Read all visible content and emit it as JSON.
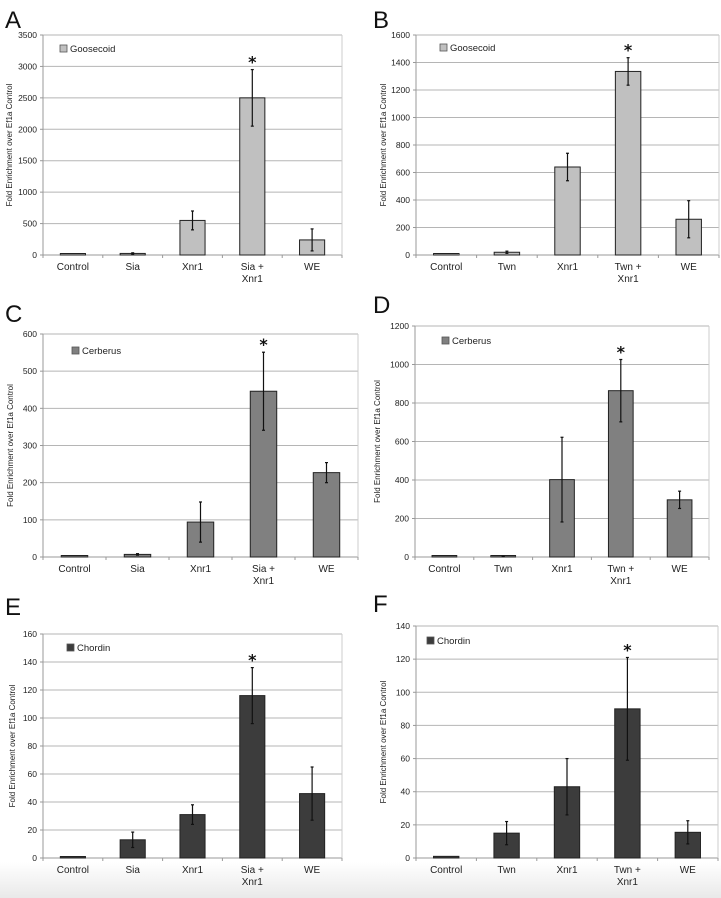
{
  "chart_data": [
    {
      "id": "A",
      "type": "bar",
      "panel_label": "A",
      "title": "",
      "xlabel": "",
      "ylabel": "Fold Enrichment over Ef1a Control",
      "legend": "Goosecoid",
      "legend_position": "top-left",
      "categories": [
        [
          "Control"
        ],
        [
          "Sia"
        ],
        [
          "Xnr1"
        ],
        [
          "Sia +",
          "Xnr1"
        ],
        [
          "WE"
        ]
      ],
      "values": [
        1,
        25,
        550,
        2500,
        240
      ],
      "errors": [
        0,
        10,
        150,
        450,
        175
      ],
      "significant": [
        false,
        false,
        false,
        true,
        false
      ],
      "ylim": [
        0,
        3500
      ],
      "yticks": [
        0,
        500,
        1000,
        1500,
        2000,
        2500,
        3000,
        3500
      ],
      "grid": true,
      "bar_color": "#c0c0c0"
    },
    {
      "id": "B",
      "type": "bar",
      "panel_label": "B",
      "title": "",
      "xlabel": "",
      "ylabel": "Fold Enrichment over Ef1a Control",
      "legend": "Goosecoid",
      "legend_position": "top-left",
      "categories": [
        [
          "Control"
        ],
        [
          "Twn"
        ],
        [
          "Xnr1"
        ],
        [
          "Twn +",
          "Xnr1"
        ],
        [
          "WE"
        ]
      ],
      "values": [
        1,
        20,
        640,
        1335,
        260
      ],
      "errors": [
        0,
        8,
        100,
        100,
        135
      ],
      "significant": [
        false,
        false,
        false,
        true,
        false
      ],
      "ylim": [
        0,
        1600
      ],
      "yticks": [
        0,
        200,
        400,
        600,
        800,
        1000,
        1200,
        1400,
        1600
      ],
      "grid": true,
      "bar_color": "#c0c0c0"
    },
    {
      "id": "C",
      "type": "bar",
      "panel_label": "C",
      "title": "",
      "xlabel": "",
      "ylabel": "Fold Enrichment over Ef1a Control",
      "legend": "Cerberus",
      "legend_position": "top-left",
      "categories": [
        [
          "Control"
        ],
        [
          "Sia"
        ],
        [
          "Xnr1"
        ],
        [
          "Sia +",
          "Xnr1"
        ],
        [
          "WE"
        ]
      ],
      "values": [
        1,
        7,
        94,
        446,
        227
      ],
      "errors": [
        0,
        2,
        54,
        105,
        27
      ],
      "significant": [
        false,
        false,
        false,
        true,
        false
      ],
      "ylim": [
        0,
        600
      ],
      "yticks": [
        0,
        100,
        200,
        300,
        400,
        500,
        600
      ],
      "grid": true,
      "bar_color": "#808080"
    },
    {
      "id": "D",
      "type": "bar",
      "panel_label": "D",
      "title": "",
      "xlabel": "",
      "ylabel": "Fold Enrichment over Ef1a Control",
      "legend": "Cerberus",
      "legend_position": "top-left",
      "categories": [
        [
          "Control"
        ],
        [
          "Twn"
        ],
        [
          "Xnr1"
        ],
        [
          "Twn +",
          "Xnr1"
        ],
        [
          "WE"
        ]
      ],
      "values": [
        1,
        3,
        402,
        864,
        297
      ],
      "errors": [
        0,
        1,
        220,
        162,
        45
      ],
      "significant": [
        false,
        false,
        false,
        true,
        false
      ],
      "ylim": [
        0,
        1200
      ],
      "yticks": [
        0,
        200,
        400,
        600,
        800,
        1000,
        1200
      ],
      "grid": true,
      "bar_color": "#808080"
    },
    {
      "id": "E",
      "type": "bar",
      "panel_label": "E",
      "title": "",
      "xlabel": "",
      "ylabel": "Fold Enrichment over Ef1a Control",
      "legend": "Chordin",
      "legend_position": "top-left",
      "categories": [
        [
          "Control"
        ],
        [
          "Sia"
        ],
        [
          "Xnr1"
        ],
        [
          "Sia +",
          "Xnr1"
        ],
        [
          "WE"
        ]
      ],
      "values": [
        1,
        13,
        31,
        116,
        46
      ],
      "errors": [
        0,
        5.5,
        7,
        20,
        19
      ],
      "significant": [
        false,
        false,
        false,
        true,
        false
      ],
      "ylim": [
        0,
        160
      ],
      "yticks": [
        0,
        20,
        40,
        60,
        80,
        100,
        120,
        140,
        160
      ],
      "grid": true,
      "bar_color": "#3c3c3c"
    },
    {
      "id": "F",
      "type": "bar",
      "panel_label": "F",
      "title": "",
      "xlabel": "",
      "ylabel": "Fold Enrichment over Ef1a Control",
      "legend": "Chordin",
      "legend_position": "top-left",
      "categories": [
        [
          "Control"
        ],
        [
          "Twn"
        ],
        [
          "Xnr1"
        ],
        [
          "Twn +",
          "Xnr1"
        ],
        [
          "WE"
        ]
      ],
      "values": [
        1,
        15,
        43,
        90,
        15.5
      ],
      "errors": [
        0,
        7,
        17,
        31,
        7
      ],
      "significant": [
        false,
        false,
        false,
        true,
        false
      ],
      "ylim": [
        0,
        140
      ],
      "yticks": [
        0,
        20,
        40,
        60,
        80,
        100,
        120,
        140
      ],
      "grid": true,
      "bar_color": "#3c3c3c"
    }
  ],
  "significance_marker": "*"
}
